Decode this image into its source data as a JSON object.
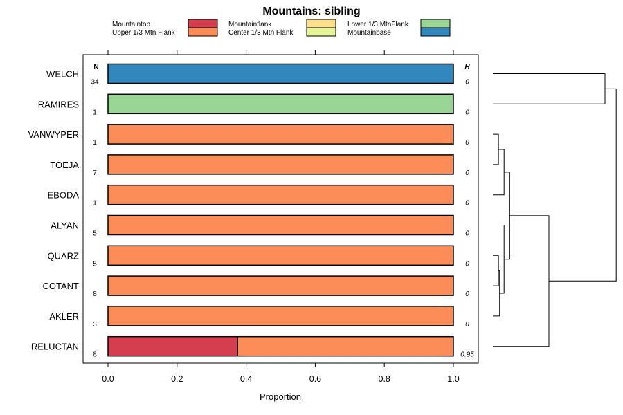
{
  "chart_data": {
    "type": "bar",
    "orientation": "horizontal",
    "stacked": true,
    "title": "Mountains: sibling",
    "xlabel": "Proportion",
    "xlim": [
      0,
      1
    ],
    "xticks": [
      "0.0",
      "0.2",
      "0.4",
      "0.6",
      "0.8",
      "1.0"
    ],
    "xtick_values": [
      0,
      0.2,
      0.4,
      0.6,
      0.8,
      1.0
    ],
    "n_header": "N",
    "h_header": "H",
    "legend": [
      {
        "label": "Mountaintop",
        "color": "#d53e4f"
      },
      {
        "label": "Upper 1/3 Mtn Flank",
        "color": "#fc8d59"
      },
      {
        "label": "Mountainflank",
        "color": "#fee08b"
      },
      {
        "label": "Center 1/3 Mtn Flank",
        "color": "#e6f598"
      },
      {
        "label": "Lower 1/3 MtnFlank",
        "color": "#99d594"
      },
      {
        "label": "Mountainbase",
        "color": "#3288bd"
      }
    ],
    "categories": [
      "WELCH",
      "RAMIRES",
      "VANWYPER",
      "TOEJA",
      "EBODA",
      "ALYAN",
      "QUARZ",
      "COTANT",
      "AKLER",
      "RELUCTAN"
    ],
    "n": [
      "34",
      "1",
      "1",
      "7",
      "1",
      "5",
      "5",
      "8",
      "3",
      "8"
    ],
    "h": [
      "0",
      "0",
      "0",
      "0",
      "0",
      "0",
      "0",
      "0",
      "0",
      "0.95"
    ],
    "series": [
      {
        "name": "Mountaintop",
        "color": "#d53e4f",
        "values": [
          0,
          0,
          0,
          0,
          0,
          0,
          0,
          0,
          0,
          0.375
        ]
      },
      {
        "name": "Upper 1/3 Mtn Flank",
        "color": "#fc8d59",
        "values": [
          0,
          0,
          1,
          1,
          1,
          1,
          1,
          1,
          1,
          0.625
        ]
      },
      {
        "name": "Mountainflank",
        "color": "#fee08b",
        "values": [
          0,
          0,
          0,
          0,
          0,
          0,
          0,
          0,
          0,
          0
        ]
      },
      {
        "name": "Center 1/3 Mtn Flank",
        "color": "#e6f598",
        "values": [
          0,
          0,
          0,
          0,
          0,
          0,
          0,
          0,
          0,
          0
        ]
      },
      {
        "name": "Lower 1/3 MtnFlank",
        "color": "#99d594",
        "values": [
          0,
          1,
          0,
          0,
          0,
          0,
          0,
          0,
          0,
          0
        ]
      },
      {
        "name": "Mountainbase",
        "color": "#3288bd",
        "values": [
          1,
          0,
          0,
          0,
          0,
          0,
          0,
          0,
          0,
          0
        ]
      }
    ],
    "dendrogram_merges": [
      [
        2,
        3,
        0.1
      ],
      [
        6,
        7,
        0.1
      ],
      [
        -2,
        8,
        0.12
      ],
      [
        -1,
        4,
        0.2
      ],
      [
        5,
        -3,
        0.2
      ],
      [
        -4,
        -5,
        0.3
      ],
      [
        -6,
        9,
        1.0
      ],
      [
        0,
        1,
        2.0
      ],
      [
        -8,
        -7,
        2.2
      ]
    ]
  }
}
